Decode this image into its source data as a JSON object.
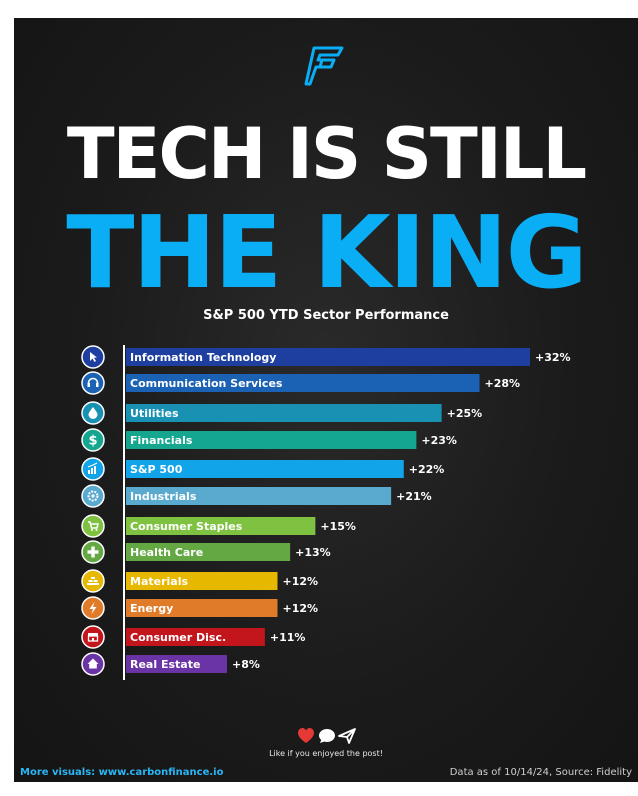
{
  "header": {
    "title_line1": "TECH IS STILL",
    "title_line2": "THE KING",
    "subtitle": "S&P 500 YTD Sector Performance"
  },
  "colors": {
    "background": "#1b1b1b",
    "accent": "#0aaef5",
    "heart": "#e53935"
  },
  "chart_data": {
    "type": "bar",
    "orientation": "horizontal",
    "title": "S&P 500 YTD Sector Performance",
    "unit": "%",
    "categories": [
      "Information Technology",
      "Communication Services",
      "Utilities",
      "Financials",
      "S&P 500",
      "Industrials",
      "Consumer Staples",
      "Health Care",
      "Materials",
      "Energy",
      "Consumer Disc.",
      "Real Estate"
    ],
    "values": [
      32,
      28,
      25,
      23,
      22,
      21,
      15,
      13,
      12,
      12,
      11,
      8
    ],
    "value_labels": [
      "+32%",
      "+28%",
      "+25%",
      "+23%",
      "+22%",
      "+21%",
      "+15%",
      "+13%",
      "+12%",
      "+12%",
      "+11%",
      "+8%"
    ],
    "bar_colors": [
      "#1e3fa0",
      "#1b62b5",
      "#1891b3",
      "#15a68f",
      "#12a4e8",
      "#5aa9cf",
      "#7fc241",
      "#64a844",
      "#e6b800",
      "#e07b2a",
      "#c3161c",
      "#6b34a6"
    ],
    "icons": [
      "cursor-icon",
      "headphones-icon",
      "droplet-icon",
      "dollar-icon",
      "bar-chart-icon",
      "gear-icon",
      "cart-icon",
      "plus-icon",
      "layers-icon",
      "lightning-icon",
      "store-icon",
      "house-icon"
    ],
    "grid": false,
    "xlim": [
      0,
      32
    ]
  },
  "social": {
    "prompt": "Like if you enjoyed the post!",
    "icons": [
      "heart-icon",
      "comment-icon",
      "send-icon"
    ]
  },
  "footer": {
    "left": "More visuals: www.carbonfinance.io",
    "right": "Data as of 10/14/24, Source: Fidelity"
  }
}
